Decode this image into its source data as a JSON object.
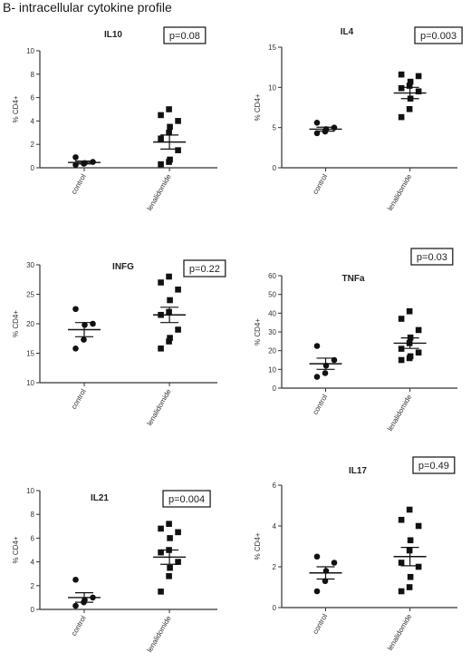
{
  "figure": {
    "title": "B- intracellular cytokine profile"
  },
  "chart_data": [
    {
      "type": "scatter",
      "title": "IL10",
      "p_value_label": "p=0.08",
      "ylabel": "% CD4+",
      "ylim": [
        0,
        10
      ],
      "yticks": [
        "0",
        "2",
        "4",
        "6",
        "8",
        "10"
      ],
      "categories": [
        "control",
        "lenalidomide"
      ],
      "series": [
        {
          "name": "control",
          "marker": "circle",
          "values": [
            0.25,
            0.35,
            0.4,
            0.5,
            0.9
          ],
          "mean": 0.45,
          "sem": 0.12
        },
        {
          "name": "lenalidomide",
          "marker": "square",
          "values": [
            0.3,
            0.5,
            0.7,
            1.5,
            2.5,
            3.0,
            3.5,
            4.0,
            4.5,
            5.0
          ],
          "mean": 2.2,
          "sem": 0.6
        }
      ]
    },
    {
      "type": "scatter",
      "title": "IL4",
      "p_value_label": "p=0.003",
      "ylabel": "% CD4+",
      "ylim": [
        0,
        15
      ],
      "yticks": [
        "0",
        "5",
        "10",
        "15"
      ],
      "categories": [
        "control",
        "lenalidomide"
      ],
      "series": [
        {
          "name": "control",
          "marker": "circle",
          "values": [
            4.3,
            4.5,
            4.8,
            5.0,
            5.6
          ],
          "mean": 4.8,
          "sem": 0.25
        },
        {
          "name": "lenalidomide",
          "marker": "square",
          "values": [
            6.3,
            7.3,
            8.6,
            9.5,
            9.9,
            10.2,
            10.7,
            11.4,
            11.6
          ],
          "mean": 9.3,
          "sem": 0.7
        }
      ]
    },
    {
      "type": "scatter",
      "title": "INFG",
      "p_value_label": "p=0.22",
      "ylabel": "% CD4+",
      "ylim": [
        10,
        30
      ],
      "yticks": [
        "10",
        "15",
        "20",
        "25",
        "30"
      ],
      "categories": [
        "control",
        "lenalidomide"
      ],
      "series": [
        {
          "name": "control",
          "marker": "circle",
          "values": [
            15.8,
            17.3,
            19.8,
            20.0,
            22.5
          ],
          "mean": 19.0,
          "sem": 1.2
        },
        {
          "name": "lenalidomide",
          "marker": "square",
          "values": [
            15.8,
            17.0,
            17.6,
            19.0,
            21.5,
            22.0,
            24.0,
            25.8,
            27.0,
            28.0
          ],
          "mean": 21.5,
          "sem": 1.3
        }
      ]
    },
    {
      "type": "scatter",
      "title": "TNFa",
      "p_value_label": "p=0.03",
      "ylabel": "% CD4+",
      "ylim": [
        0,
        60
      ],
      "yticks": [
        "0",
        "10",
        "20",
        "30",
        "40",
        "50",
        "60"
      ],
      "categories": [
        "control",
        "lenalidomide"
      ],
      "series": [
        {
          "name": "control",
          "marker": "circle",
          "values": [
            6.0,
            8.0,
            12.0,
            15.0,
            22.5
          ],
          "mean": 13.0,
          "sem": 3.0
        },
        {
          "name": "lenalidomide",
          "marker": "square",
          "values": [
            15.0,
            16.0,
            17.0,
            19.0,
            21.0,
            24.0,
            27.0,
            31.0,
            37.0,
            41.0
          ],
          "mean": 24.0,
          "sem": 2.8
        }
      ]
    },
    {
      "type": "scatter",
      "title": "IL21",
      "p_value_label": "p=0.004",
      "ylabel": "% CD4+",
      "ylim": [
        0,
        10
      ],
      "yticks": [
        "0",
        "2",
        "4",
        "6",
        "8",
        "10"
      ],
      "categories": [
        "control",
        "lenalidomide"
      ],
      "series": [
        {
          "name": "control",
          "marker": "circle",
          "values": [
            0.3,
            0.6,
            0.8,
            1.0,
            2.5
          ],
          "mean": 1.0,
          "sem": 0.4
        },
        {
          "name": "lenalidomide",
          "marker": "square",
          "values": [
            1.5,
            2.8,
            3.5,
            4.0,
            4.8,
            5.0,
            6.0,
            6.5,
            6.8,
            7.2
          ],
          "mean": 4.4,
          "sem": 0.6
        }
      ]
    },
    {
      "type": "scatter",
      "title": "IL17",
      "p_value_label": "p=0.49",
      "ylabel": "% CD4+",
      "ylim": [
        0,
        6
      ],
      "yticks": [
        "0",
        "2",
        "4",
        "6"
      ],
      "categories": [
        "control",
        "lenalidomide"
      ],
      "series": [
        {
          "name": "control",
          "marker": "circle",
          "values": [
            0.8,
            1.3,
            1.8,
            2.2,
            2.5
          ],
          "mean": 1.7,
          "sem": 0.3
        },
        {
          "name": "lenalidomide",
          "marker": "square",
          "values": [
            0.8,
            1.0,
            1.5,
            2.0,
            2.2,
            2.8,
            3.3,
            4.0,
            4.3,
            4.8
          ],
          "mean": 2.5,
          "sem": 0.45
        }
      ]
    }
  ]
}
